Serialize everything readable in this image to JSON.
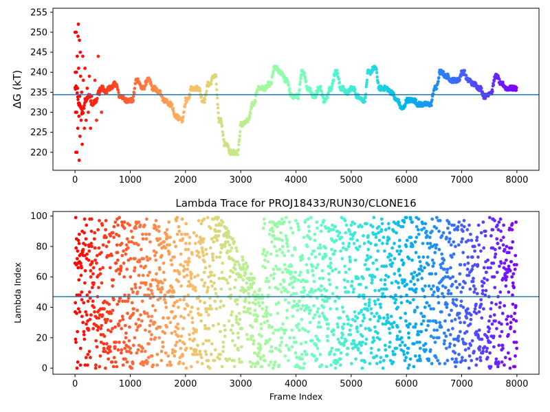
{
  "chart_data": [
    {
      "type": "scatter",
      "title": "",
      "xlabel": "",
      "ylabel": "ΔG (kT)",
      "xlim": [
        -400,
        8400
      ],
      "ylim": [
        215.5,
        256.0
      ],
      "xticks": [
        "0",
        "1000",
        "2000",
        "3000",
        "4000",
        "5000",
        "6000",
        "7000",
        "8000"
      ],
      "yticks": [
        "220",
        "225",
        "230",
        "235",
        "240",
        "245",
        "250",
        "255"
      ],
      "hline": 234.4,
      "hline_color": "#1f77b4",
      "colormap": "rainbow (frame index, red → violet)",
      "series_trace": {
        "x": [
          0,
          60,
          120,
          180,
          240,
          300,
          360,
          420,
          480,
          540,
          600,
          700,
          800,
          900,
          1000,
          1100,
          1200,
          1300,
          1400,
          1500,
          1600,
          1700,
          1800,
          1900,
          2000,
          2100,
          2200,
          2300,
          2400,
          2500,
          2600,
          2700,
          2800,
          2900,
          3000,
          3100,
          3200,
          3300,
          3400,
          3500,
          3600,
          3700,
          3800,
          3900,
          4000,
          4100,
          4200,
          4300,
          4400,
          4500,
          4600,
          4700,
          4800,
          4900,
          5000,
          5100,
          5200,
          5300,
          5400,
          5500,
          5600,
          5700,
          5800,
          5900,
          6000,
          6100,
          6200,
          6300,
          6400,
          6500,
          6600,
          6700,
          6800,
          6900,
          7000,
          7100,
          7200,
          7300,
          7400,
          7500,
          7600,
          7700,
          7800,
          7900,
          8000
        ],
        "y": [
          236,
          232,
          230,
          233,
          234,
          232,
          233,
          235,
          236,
          235,
          236,
          237,
          234,
          233,
          233,
          238,
          236,
          238,
          236,
          235,
          233,
          232,
          229,
          228,
          233,
          236,
          236,
          233,
          237,
          239,
          228,
          222,
          220,
          220,
          227,
          228,
          232,
          236,
          236,
          237,
          241,
          240,
          238,
          234,
          234,
          240,
          236,
          234,
          236,
          233,
          236,
          240,
          236,
          235,
          236,
          234,
          233,
          240,
          241,
          236,
          236,
          235,
          233,
          231,
          233,
          233,
          232,
          232,
          232,
          236,
          240,
          239,
          238,
          238,
          240,
          238,
          237,
          236,
          234,
          235,
          239,
          237,
          236,
          236,
          236
        ]
      },
      "series_scatter": {
        "x": [
          0,
          5,
          10,
          15,
          20,
          25,
          30,
          35,
          40,
          45,
          50,
          55,
          60,
          65,
          70,
          75,
          80,
          85,
          90,
          95,
          100,
          110,
          120,
          130,
          140,
          150,
          160,
          170,
          180,
          190,
          200,
          220,
          240,
          260,
          280,
          300,
          330,
          360,
          390,
          420,
          450,
          480
        ],
        "y": [
          250,
          240,
          230,
          220,
          250,
          240,
          230,
          220,
          244,
          236,
          226,
          249,
          252,
          241,
          229,
          218,
          248,
          234,
          224,
          245,
          239,
          228,
          235,
          222,
          244,
          238,
          231,
          226,
          241,
          233,
          228,
          236,
          230,
          239,
          226,
          234,
          232,
          238,
          228,
          244,
          236,
          230
        ]
      }
    },
    {
      "type": "scatter",
      "title": "Lambda Trace for PROJ18433/RUN30/CLONE16",
      "xlabel": "Frame Index",
      "ylabel": "Lambda Index",
      "xlim": [
        -400,
        8400
      ],
      "ylim": [
        -4,
        103
      ],
      "xticks": [
        "0",
        "1000",
        "2000",
        "3000",
        "4000",
        "5000",
        "6000",
        "7000",
        "8000"
      ],
      "yticks": [
        "0",
        "20",
        "40",
        "60",
        "80",
        "100"
      ],
      "hline": 47,
      "hline_color": "#1f77b4",
      "colormap": "rainbow (frame index, red → violet)",
      "x_range": [
        0,
        8000
      ],
      "y_range": [
        0,
        99
      ],
      "n_points": 2400,
      "gap_region": {
        "x": [
          2500,
          3400
        ],
        "description": "sparse diagonal band descending from 100 to ~40"
      }
    }
  ]
}
